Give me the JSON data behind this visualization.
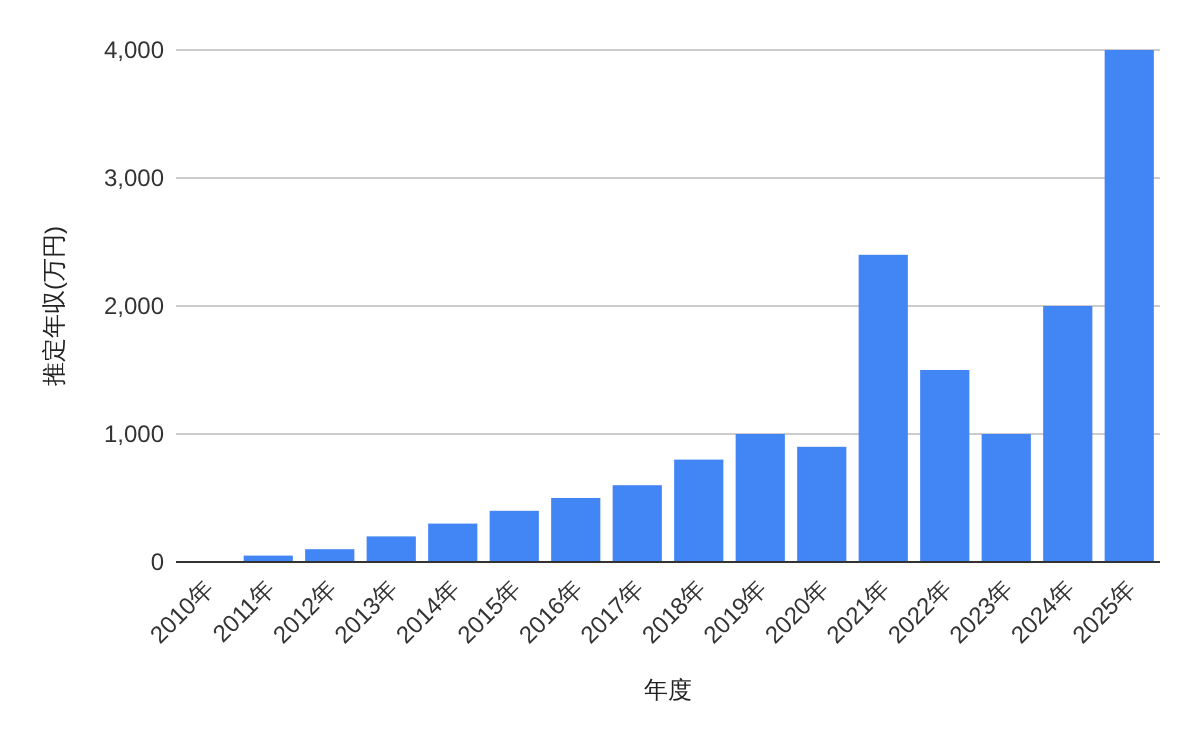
{
  "chart_data": {
    "type": "bar",
    "xlabel": "年度",
    "ylabel": "推定年収(万円)",
    "categories": [
      "2010年",
      "2011年",
      "2012年",
      "2013年",
      "2014年",
      "2015年",
      "2016年",
      "2017年",
      "2018年",
      "2019年",
      "2020年",
      "2021年",
      "2022年",
      "2023年",
      "2024年",
      "2025年"
    ],
    "values": [
      0,
      50,
      100,
      200,
      300,
      400,
      500,
      600,
      800,
      1000,
      900,
      2400,
      1500,
      1000,
      2000,
      4000
    ],
    "color": "#4285f4",
    "ylim": [
      0,
      4000
    ],
    "yticks": [
      {
        "value": 0,
        "label": "0"
      },
      {
        "value": 1000,
        "label": "1,000"
      },
      {
        "value": 2000,
        "label": "2,000"
      },
      {
        "value": 3000,
        "label": "3,000"
      },
      {
        "value": 4000,
        "label": "4,000"
      }
    ],
    "grid": "y"
  }
}
